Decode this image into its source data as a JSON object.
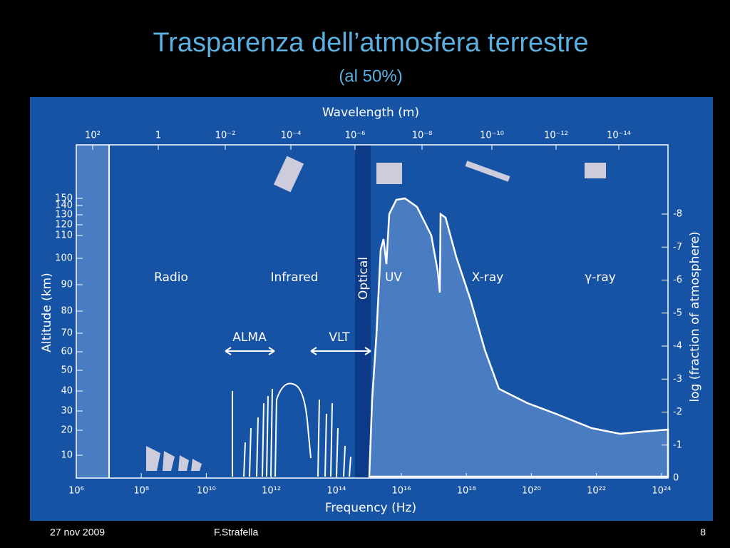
{
  "header": {
    "title": "Trasparenza dell’atmosfera terrestre",
    "subtitle": "(al 50%)"
  },
  "figure": {
    "top_axis_label": "Wavelength (m)",
    "top_ticks": [
      "10²",
      "1",
      "10⁻²",
      "10⁻⁴",
      "10⁻⁶",
      "10⁻⁸",
      "10⁻¹⁰",
      "10⁻¹²",
      "10⁻¹⁴"
    ],
    "bottom_axis_label": "Frequency (Hz)",
    "bottom_ticks": [
      "10⁶",
      "10⁸",
      "10¹⁰",
      "10¹²",
      "10¹⁴",
      "10¹⁶",
      "10¹⁸",
      "10²⁰",
      "10²²",
      "10²⁴"
    ],
    "left_axis_label": "Altitude (km)",
    "left_ticks": [
      "150",
      "140",
      "130",
      "120",
      "110",
      "100",
      "90",
      "80",
      "70",
      "60",
      "50",
      "40",
      "30",
      "20",
      "10"
    ],
    "right_axis_label": "log (fraction of atmosphere)",
    "right_ticks": [
      "-8",
      "-7",
      "-6",
      "-5",
      "-4",
      "-3",
      "-2",
      "-1",
      "0"
    ],
    "regions": [
      "Radio",
      "Infrared",
      "Optical",
      "UV",
      "X-ray",
      "γ-ray"
    ],
    "arrows": [
      "ALMA",
      "VLT"
    ]
  },
  "footer": {
    "date": "27 nov 2009",
    "author": "F.Strafella",
    "page": "8"
  }
}
